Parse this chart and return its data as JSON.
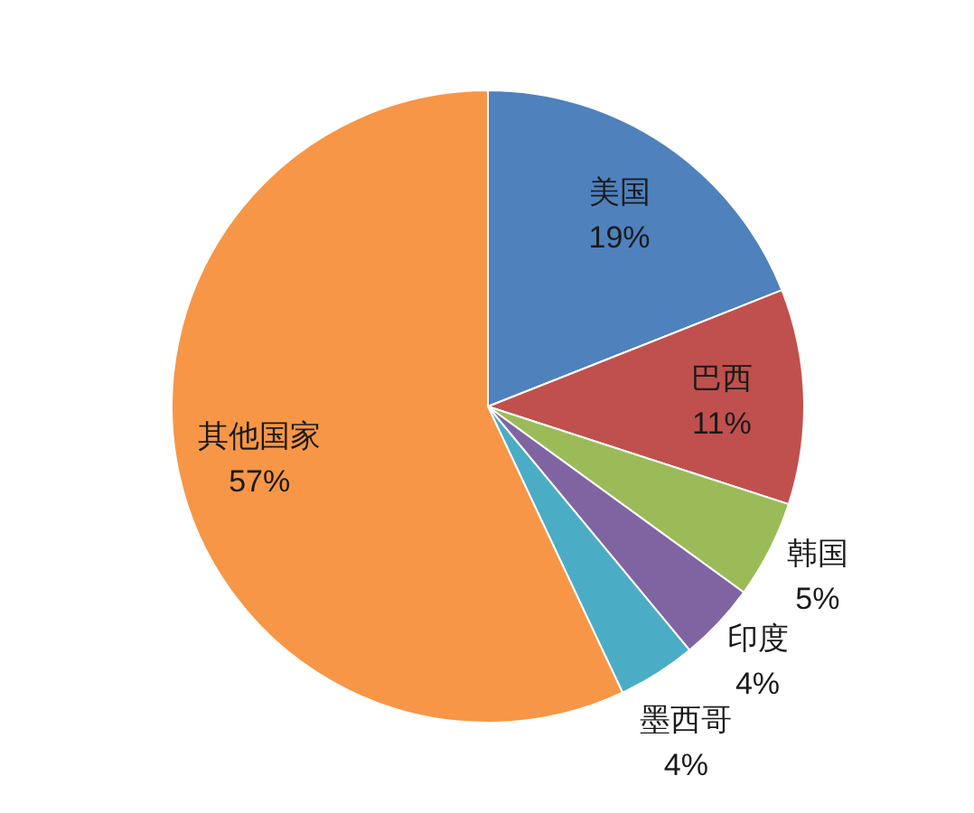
{
  "chart_data": {
    "type": "pie",
    "categories": [
      "美国",
      "巴西",
      "韩国",
      "印度",
      "墨西哥",
      "其他国家"
    ],
    "values": [
      19,
      11,
      5,
      4,
      4,
      57
    ],
    "colors": [
      "#4f81bd",
      "#c0504d",
      "#9bbb59",
      "#8064a2",
      "#4bacc6",
      "#f79646"
    ],
    "value_labels": [
      "19%",
      "11%",
      "5%",
      "4%",
      "4%",
      "57%"
    ]
  }
}
